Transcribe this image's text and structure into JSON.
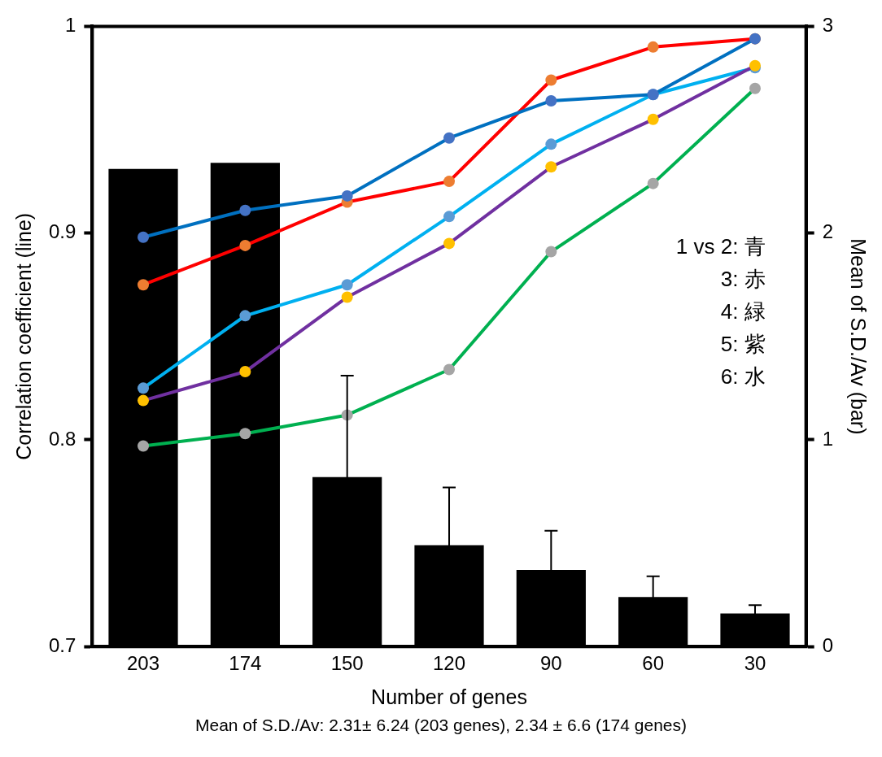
{
  "chart_data": {
    "type": "line",
    "xlabel": "Number of genes",
    "ylabel": "Correlation coefficient (line)",
    "y2label": "Mean of S.D./Av (bar)",
    "categories": [
      "203",
      "174",
      "150",
      "120",
      "90",
      "60",
      "30"
    ],
    "series": [
      {
        "type": "bar",
        "axis": "y2",
        "color": "#000000",
        "values": [
          2.31,
          2.34,
          0.82,
          0.49,
          0.37,
          0.24,
          0.16
        ],
        "errors": [
          null,
          null,
          0.49,
          0.28,
          0.19,
          0.1,
          0.04
        ]
      },
      {
        "color": "#0070c0",
        "colors": [
          "#4472c4",
          "#4472c4",
          "#4472c4",
          "#4472c4",
          "#4472c4",
          "#4472c4",
          "#4472c4"
        ],
        "values": [
          0.898,
          0.911,
          0.918,
          0.946,
          0.964,
          0.967,
          0.994
        ]
      },
      {
        "color": "#ff0000",
        "colors": [
          "#ed7d31",
          "#ed7d31",
          "#ed7d31",
          "#ed7d31",
          "#ed7d31",
          "#ed7d31",
          "#ed7d31"
        ],
        "values": [
          0.875,
          0.894,
          0.915,
          0.925,
          0.974,
          0.99,
          0.994
        ]
      },
      {
        "color": "#00b050",
        "colors": [
          "#a5a5a5",
          "#a5a5a5",
          "#a5a5a5",
          "#a5a5a5",
          "#a5a5a5",
          "#a5a5a5",
          "#a5a5a5"
        ],
        "values": [
          0.797,
          0.803,
          0.812,
          0.834,
          0.891,
          0.924,
          0.97
        ]
      },
      {
        "color": "#7030a0",
        "colors": [
          "#ffc000",
          "#ffc000",
          "#ffc000",
          "#ffc000",
          "#ffc000",
          "#ffc000",
          "#ffc000"
        ],
        "values": [
          0.819,
          0.833,
          0.869,
          0.895,
          0.932,
          0.955,
          0.981
        ]
      },
      {
        "color": "#00b0f0",
        "colors": [
          "#5b9bd5",
          "#5b9bd5",
          "#5b9bd5",
          "#5b9bd5",
          "#5b9bd5",
          "#5b9bd5",
          "#5b9bd5"
        ],
        "values": [
          0.825,
          0.86,
          0.875,
          0.908,
          0.943,
          0.967,
          0.98
        ]
      }
    ],
    "ylim": [
      0.7,
      1
    ],
    "yticks": [
      0.7,
      0.8,
      0.9,
      {
        "value": 1,
        "label": "1"
      }
    ],
    "y2lim": [
      0,
      3
    ],
    "y2ticks": [
      0,
      1,
      2,
      3
    ],
    "grid": false,
    "legend": false,
    "marker": "circle",
    "line_style": "solid",
    "annotations": [
      "1 vs 2: 青",
      "3: 赤",
      "4: 緑",
      "5: 紫",
      "6: 水",
      "Mean of S.D./Av: 2.31±  6.24 (203 genes), 2.34 ± 6.6 (174 genes)"
    ]
  }
}
